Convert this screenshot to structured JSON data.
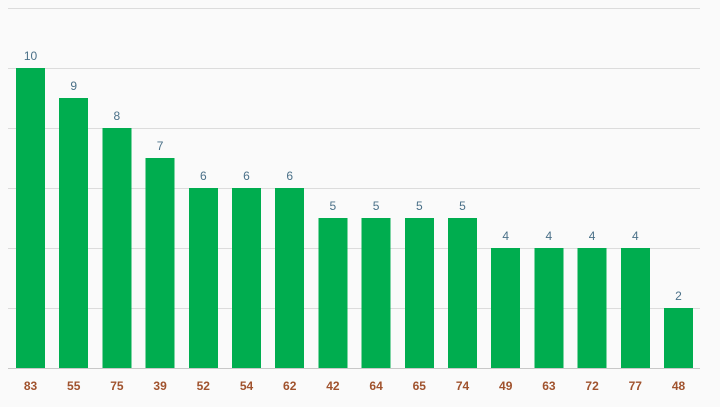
{
  "chart_data": {
    "type": "bar",
    "categories": [
      "83",
      "55",
      "75",
      "39",
      "52",
      "54",
      "62",
      "42",
      "64",
      "65",
      "74",
      "49",
      "63",
      "72",
      "77",
      "48"
    ],
    "values": [
      10,
      9,
      8,
      7,
      6,
      6,
      6,
      5,
      5,
      5,
      5,
      4,
      4,
      4,
      4,
      2
    ],
    "title": "",
    "xlabel": "",
    "ylabel": "",
    "ylim": [
      0,
      12
    ],
    "grid": true,
    "y_gridline_step": 2,
    "data_labels": true,
    "y_tick_labels_visible": false
  },
  "colors": {
    "bar": "#00ad4f",
    "data_label": "#4a7088",
    "category_label": "#a0522d",
    "background": "#fafafa"
  }
}
